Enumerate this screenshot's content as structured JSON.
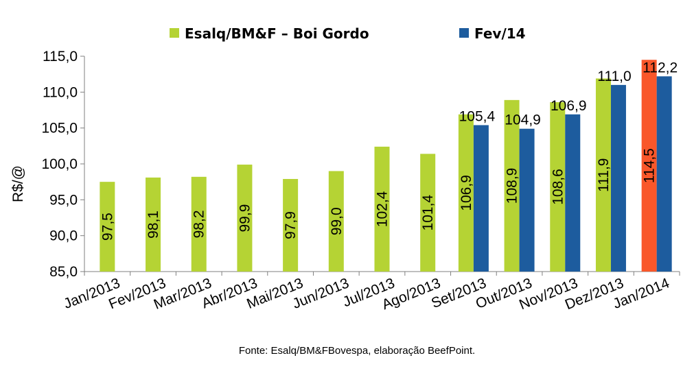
{
  "chart_data": {
    "type": "bar",
    "title": "",
    "xlabel": "",
    "ylabel": "R$/@",
    "ylim": [
      85,
      115
    ],
    "yticks": [
      85,
      90,
      95,
      100,
      105,
      110,
      115
    ],
    "ytick_labels": [
      "85,0",
      "90,0",
      "95,0",
      "100,0",
      "105,0",
      "110,0",
      "115,0"
    ],
    "grid": false,
    "legend_position": "top",
    "categories": [
      "Jan/2013",
      "Fev/2013",
      "Mar/2013",
      "Abr/2013",
      "Mai/2013",
      "Jun/2013",
      "Jul/2013",
      "Ago/2013",
      "Set/2013",
      "Out/2013",
      "Nov/2013",
      "Dez/2013",
      "Jan/2014"
    ],
    "series": [
      {
        "name": "Esalq/BM&F – Boi Gordo",
        "color": "#b5d334",
        "highlight_color": "#f9572a",
        "highlight_index": 12,
        "values": [
          97.5,
          98.1,
          98.2,
          99.9,
          97.9,
          99.0,
          102.4,
          101.4,
          106.9,
          108.9,
          108.6,
          111.9,
          114.5
        ],
        "labels": [
          "97,5",
          "98,1",
          "98,2",
          "99,9",
          "97,9",
          "99,0",
          "102,4",
          "101,4",
          "106,9",
          "108,9",
          "108,6",
          "111,9",
          "114,5"
        ]
      },
      {
        "name": "Fev/14",
        "color": "#1d5c9e",
        "values": [
          null,
          null,
          null,
          null,
          null,
          null,
          null,
          null,
          105.4,
          104.9,
          106.9,
          111.0,
          112.2
        ],
        "labels": [
          null,
          null,
          null,
          null,
          null,
          null,
          null,
          null,
          "105,4",
          "104,9",
          "106,9",
          "111,0",
          "112,2"
        ]
      }
    ],
    "source": "Fonte:  Esalq/BM&FBovespa,  elaboração  BeefPoint."
  }
}
